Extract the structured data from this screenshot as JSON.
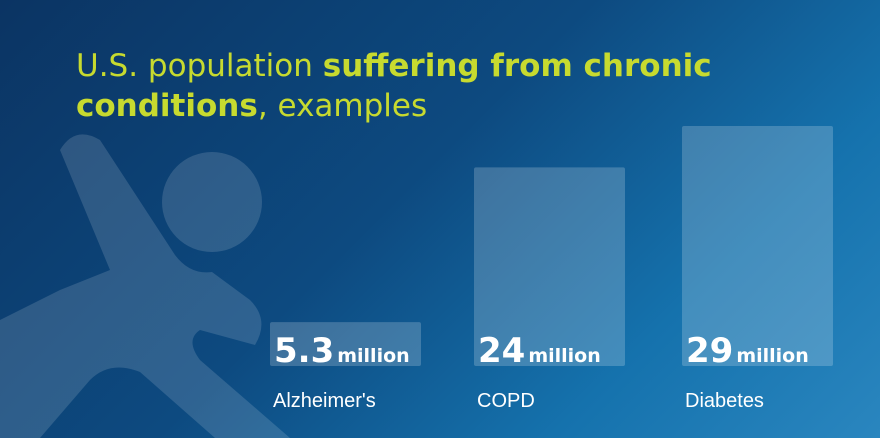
{
  "chart_data": {
    "type": "bar",
    "title": [
      {
        "text": "U.S. population ",
        "bold": false
      },
      {
        "text": "suffering from chronic conditions",
        "bold": true
      },
      {
        "text": ", examples",
        "bold": false
      }
    ],
    "categories": [
      "Alzheimer's",
      "COPD",
      "Diabetes"
    ],
    "values": [
      5.3,
      24,
      29
    ],
    "unit": "million",
    "color": "rgba(255,255,255,0.2)"
  }
}
